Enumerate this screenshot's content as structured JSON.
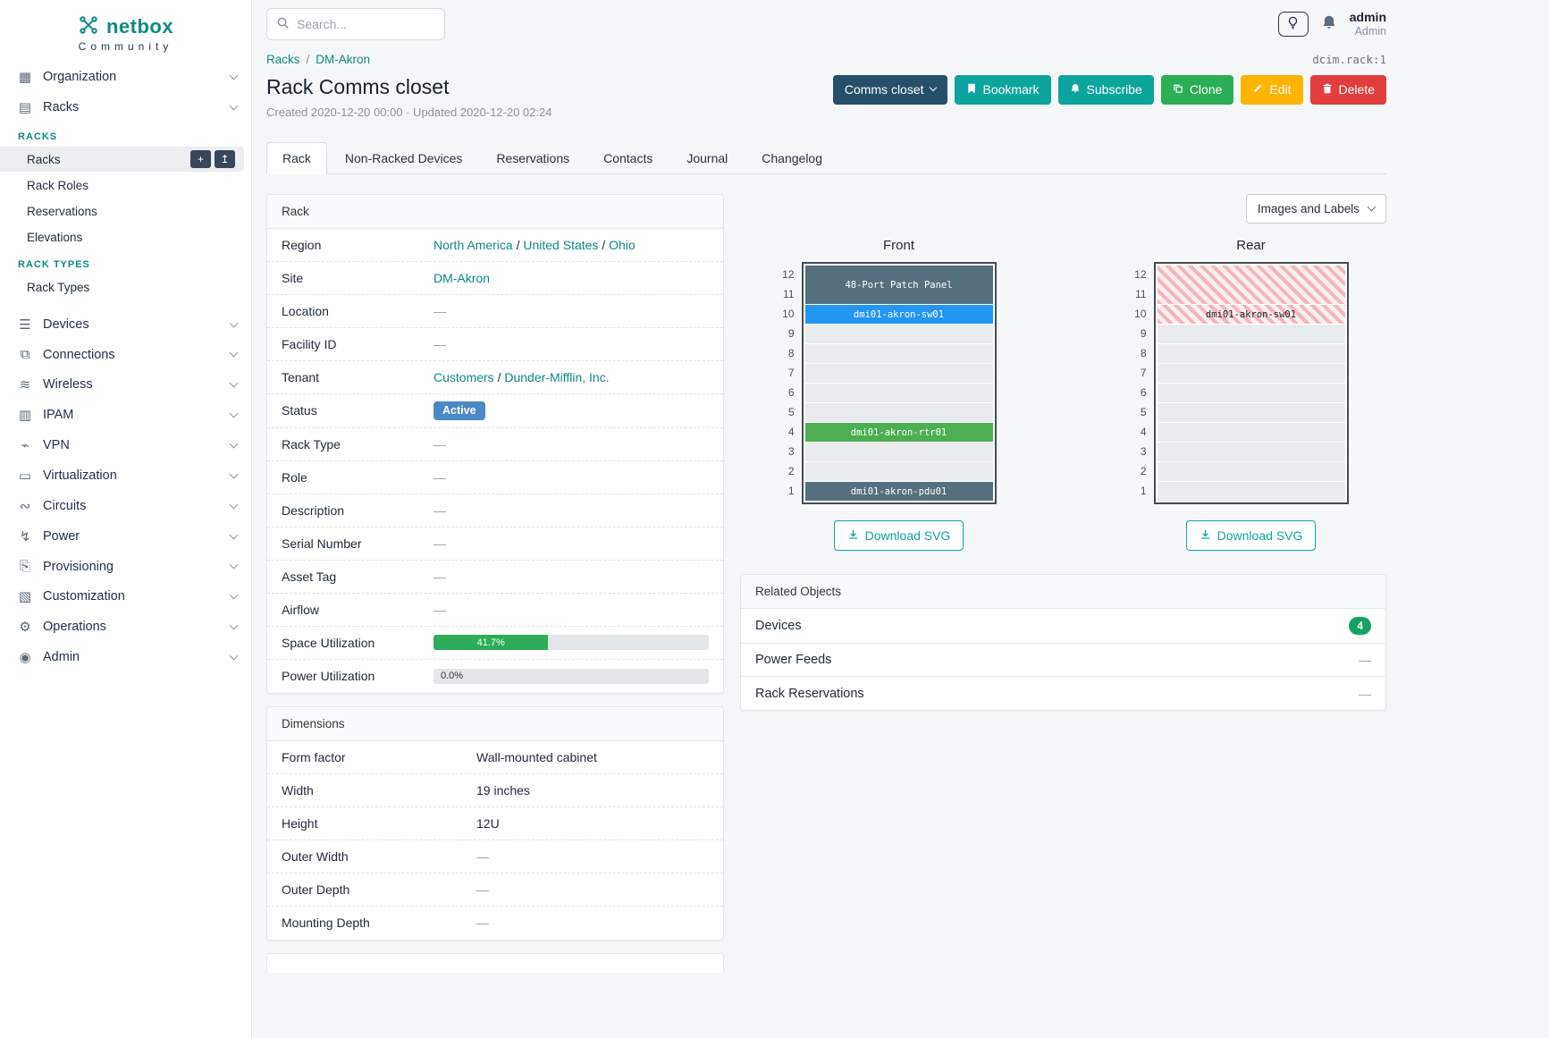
{
  "topbar": {
    "search_placeholder": "Search...",
    "user_name": "admin",
    "user_role": "Admin"
  },
  "sidebar": {
    "logo_text": "netbox",
    "logo_subtext": "Community",
    "nav": [
      {
        "label": "Organization"
      },
      {
        "label": "Racks",
        "expanded": true
      },
      {
        "label": "Devices"
      },
      {
        "label": "Connections"
      },
      {
        "label": "Wireless"
      },
      {
        "label": "IPAM"
      },
      {
        "label": "VPN"
      },
      {
        "label": "Virtualization"
      },
      {
        "label": "Circuits"
      },
      {
        "label": "Power"
      },
      {
        "label": "Provisioning"
      },
      {
        "label": "Customization"
      },
      {
        "label": "Operations"
      },
      {
        "label": "Admin"
      }
    ],
    "racks_sections": [
      {
        "heading": "RACKS",
        "links": [
          {
            "label": "Racks",
            "active": true,
            "has_actions": true,
            "actions": [
              {
                "name": "add",
                "glyph": "+"
              },
              {
                "name": "import",
                "glyph": "↥"
              }
            ]
          },
          {
            "label": "Rack Roles"
          },
          {
            "label": "Reservations"
          },
          {
            "label": "Elevations"
          }
        ]
      },
      {
        "heading": "RACK TYPES",
        "links": [
          {
            "label": "Rack Types"
          }
        ]
      }
    ]
  },
  "breadcrumb": [
    "Racks",
    "DM-Akron"
  ],
  "object_ref": "dcim.rack:1",
  "header": {
    "title": "Rack Comms closet",
    "meta": "Created 2020-12-20 00:00 · Updated 2020-12-20 02:24",
    "buttons": {
      "context": "Comms closet",
      "bookmark": "Bookmark",
      "subscribe": "Subscribe",
      "clone": "Clone",
      "edit": "Edit",
      "delete": "Delete"
    }
  },
  "tabs": [
    {
      "label": "Rack",
      "active": true
    },
    {
      "label": "Non-Racked Devices"
    },
    {
      "label": "Reservations"
    },
    {
      "label": "Contacts"
    },
    {
      "label": "Journal"
    },
    {
      "label": "Changelog"
    }
  ],
  "rack_panel": {
    "title": "Rack",
    "rows": [
      {
        "label": "Region",
        "type": "links",
        "links": [
          "North America",
          "United States",
          "Ohio"
        ]
      },
      {
        "label": "Site",
        "type": "links",
        "links": [
          "DM-Akron"
        ]
      },
      {
        "label": "Location",
        "type": "text",
        "value": "—"
      },
      {
        "label": "Facility ID",
        "type": "text",
        "value": "—"
      },
      {
        "label": "Tenant",
        "type": "links",
        "links": [
          "Customers",
          "Dunder-Mifflin, Inc."
        ]
      },
      {
        "label": "Status",
        "type": "badge",
        "value": "Active",
        "color": "#4a88c7"
      },
      {
        "label": "Rack Type",
        "type": "text",
        "value": "—"
      },
      {
        "label": "Role",
        "type": "text",
        "value": "—"
      },
      {
        "label": "Description",
        "type": "text",
        "value": "—"
      },
      {
        "label": "Serial Number",
        "type": "text",
        "value": "—"
      },
      {
        "label": "Asset Tag",
        "type": "text",
        "value": "—"
      },
      {
        "label": "Airflow",
        "type": "text",
        "value": "—"
      },
      {
        "label": "Space Utilization",
        "type": "progress",
        "percent": 41.7,
        "value": "41.7%",
        "bar_color": "#2eac59"
      },
      {
        "label": "Power Utilization",
        "type": "progress",
        "percent": 0,
        "value": "0.0%",
        "bar_color": "#2eac59"
      }
    ]
  },
  "dimensions_panel": {
    "title": "Dimensions",
    "rows": [
      {
        "label": "Form factor",
        "type": "text",
        "value": "Wall-mounted cabinet"
      },
      {
        "label": "Width",
        "type": "text",
        "value": "19 inches"
      },
      {
        "label": "Height",
        "type": "text",
        "value": "12U"
      },
      {
        "label": "Outer Width",
        "type": "text",
        "value": "—"
      },
      {
        "label": "Outer Depth",
        "type": "text",
        "value": "—"
      },
      {
        "label": "Mounting Depth",
        "type": "text",
        "value": "—"
      }
    ]
  },
  "elevations": {
    "view_select": "Images and Labels",
    "download_label": "Download SVG",
    "unit_count": 12,
    "front": {
      "title": "Front",
      "slots": [
        {
          "unit": 12,
          "span": 2,
          "label": "48-Port Patch Panel",
          "color": "#566f7c"
        },
        {
          "unit": 10,
          "span": 1,
          "label": "dmi01-akron-sw01",
          "color": "#2196f3"
        },
        {
          "unit": 4,
          "span": 1,
          "label": "dmi01-akron-rtr01",
          "color": "#4caf50"
        },
        {
          "unit": 1,
          "span": 1,
          "label": "dmi01-akron-pdu01",
          "color": "#566f7c"
        }
      ]
    },
    "rear": {
      "title": "Rear",
      "slots": [
        {
          "unit": 12,
          "span": 2,
          "label": "",
          "striped": true
        },
        {
          "unit": 10,
          "span": 1,
          "label": "dmi01-akron-sw01",
          "striped": true
        }
      ]
    }
  },
  "related_panel": {
    "title": "Related Objects",
    "rows": [
      {
        "label": "Devices",
        "badge": "4",
        "badge_color": "#12a364"
      },
      {
        "label": "Power Feeds",
        "value": "—"
      },
      {
        "label": "Rack Reservations",
        "value": "—"
      }
    ]
  }
}
